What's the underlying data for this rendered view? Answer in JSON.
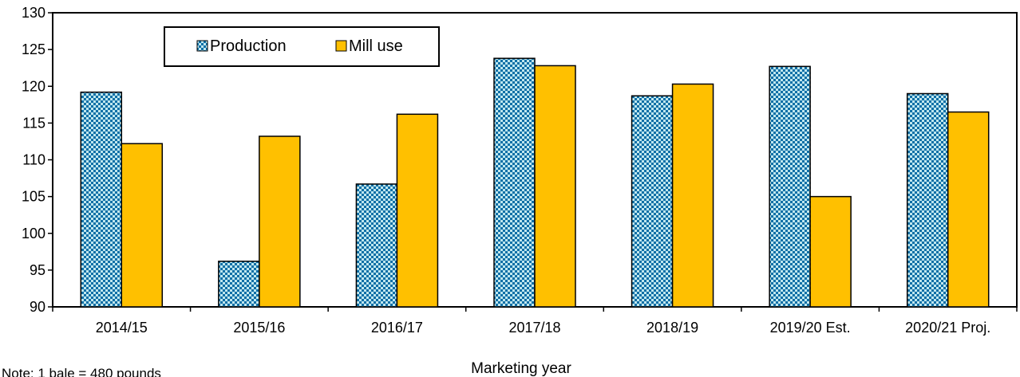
{
  "chart_data": {
    "type": "bar",
    "title": "",
    "xlabel": "Marketing year",
    "ylabel": "",
    "ylim": [
      90,
      130
    ],
    "yticks": [
      90,
      95,
      100,
      105,
      110,
      115,
      120,
      125,
      130
    ],
    "grid": false,
    "legend_position": "top-left",
    "categories": [
      "2014/15",
      "2015/16",
      "2016/17",
      "2017/18",
      "2018/19",
      "2019/20 Est.",
      "2020/21 Proj."
    ],
    "series": [
      {
        "name": "Production",
        "values": [
          119.2,
          96.2,
          106.7,
          123.8,
          118.7,
          122.7,
          119.0
        ],
        "color": "#0e6fa6",
        "pattern": "checker"
      },
      {
        "name": "Mill use",
        "values": [
          112.2,
          113.2,
          116.2,
          122.8,
          120.3,
          105.0,
          116.5
        ],
        "color": "#ffc000",
        "pattern": "solid"
      }
    ],
    "note": "Note: 1 bale = 480 pounds"
  }
}
